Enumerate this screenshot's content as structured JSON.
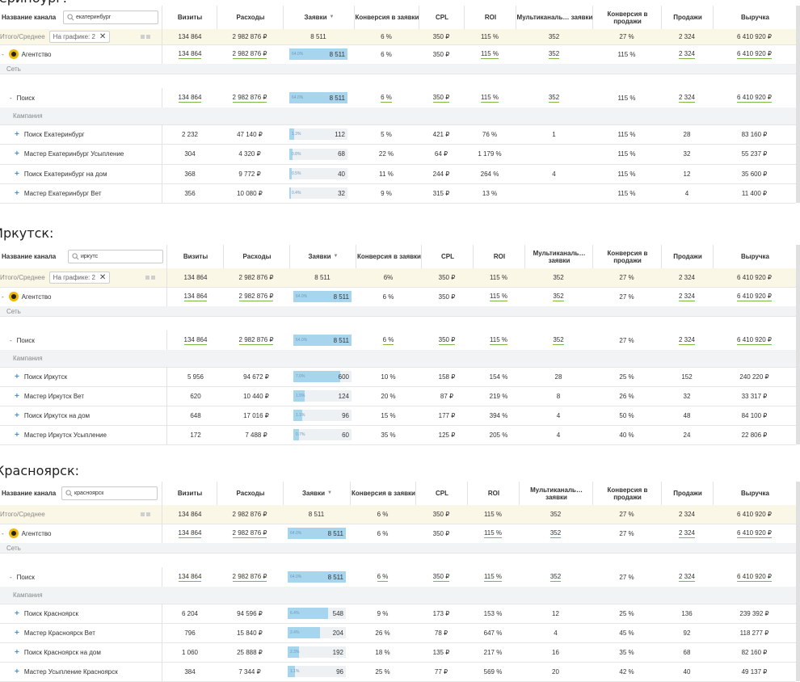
{
  "columns": [
    "Визиты",
    "Расходы",
    "Заявки",
    "Конверсия в заявки",
    "CPL",
    "ROI",
    "Мультиканаль… заявки",
    "Конверсия в продажи",
    "Продажи",
    "Выручка"
  ],
  "name_header": "Название канала",
  "sort_arrow": "▼",
  "chip_label": "На графике: 2",
  "chip_close": "✕",
  "sections": [
    {
      "heading": "Екатеринбург:",
      "search_value": "екатеринбург",
      "total": {
        "label": "Итого/Среднее",
        "values": [
          "134 864",
          "2 982 876 ₽",
          "8 511",
          "6 %",
          "350 ₽",
          "115 %",
          "352",
          "27 %",
          "2 324",
          "6 410 920 ₽"
        ]
      },
      "agency": {
        "label": "Агентство",
        "bar_pct": "64.0%",
        "bar_fraction": 1.0,
        "values": [
          "134 864",
          "2 982 876 ₽",
          "8 511",
          "6 %",
          "350 ₽",
          "115 %",
          "352",
          "115 %",
          "2 324",
          "6 410 920 ₽"
        ]
      },
      "group_network": "Сеть",
      "search_row": {
        "label": "Поиск",
        "bar_pct": "64.0%",
        "bar_fraction": 1.0,
        "values": [
          "134 864",
          "2 982 876 ₽",
          "8 511",
          "6 %",
          "350 ₽",
          "115 %",
          "352",
          "115 %",
          "2 324",
          "6 410 920 ₽"
        ]
      },
      "group_campaign": "Кампания",
      "campaigns": [
        {
          "label": "Поиск Екатеринбург",
          "bar_pct": "1.3%",
          "bar_fraction": 0.09,
          "values": [
            "2 232",
            "47 140 ₽",
            "112",
            "5 %",
            "421 ₽",
            "76 %",
            "1",
            "115 %",
            "28",
            "83 160 ₽"
          ]
        },
        {
          "label": "Мастер Екатеринбург Усыпление",
          "bar_pct": "0.8%",
          "bar_fraction": 0.06,
          "values": [
            "304",
            "4 320 ₽",
            "68",
            "22 %",
            "64 ₽",
            "1 179 %",
            "",
            "115 %",
            "32",
            "55 237 ₽"
          ]
        },
        {
          "label": "Поиск Екатеринбург на дом",
          "bar_pct": "0.5%",
          "bar_fraction": 0.04,
          "values": [
            "368",
            "9 772 ₽",
            "40",
            "11 %",
            "244 ₽",
            "264 %",
            "4",
            "115 %",
            "12",
            "35 600 ₽"
          ]
        },
        {
          "label": "Мастер Екатеринбург Вет",
          "bar_pct": "0.4%",
          "bar_fraction": 0.03,
          "values": [
            "356",
            "10 080 ₽",
            "32",
            "9 %",
            "315 ₽",
            "13 %",
            "",
            "115 %",
            "4",
            "11 400 ₽"
          ]
        }
      ]
    },
    {
      "heading": "Иркутск:",
      "search_value": "иркутс",
      "total": {
        "label": "Итого/Среднее",
        "values": [
          "134 864",
          "2 982 876 ₽",
          "8 511",
          "6%",
          "350 ₽",
          "115 %",
          "352",
          "27 %",
          "2 324",
          "6 410 920 ₽"
        ]
      },
      "agency": {
        "label": "Агентство",
        "bar_pct": "64.0%",
        "bar_fraction": 1.0,
        "values": [
          "134 864",
          "2 982 876 ₽",
          "8 511",
          "6 %",
          "350 ₽",
          "115 %",
          "352",
          "27 %",
          "2 324",
          "6 410 920 ₽"
        ]
      },
      "group_network": "Сеть",
      "search_row": {
        "label": "Поиск",
        "bar_pct": "64.0%",
        "bar_fraction": 1.0,
        "values": [
          "134 864",
          "2 982 876 ₽",
          "8 511",
          "6 %",
          "350 ₽",
          "115 %",
          "352",
          "27 %",
          "2 324",
          "6 410 920 ₽"
        ]
      },
      "group_campaign": "Кампания",
      "campaigns": [
        {
          "label": "Поиск Иркутск",
          "bar_pct": "7.0%",
          "bar_fraction": 0.8,
          "values": [
            "5 956",
            "94 672 ₽",
            "600",
            "10 %",
            "158 ₽",
            "154 %",
            "28",
            "25 %",
            "152",
            "240 220 ₽"
          ]
        },
        {
          "label": "Мастер Иркутск Вет",
          "bar_pct": "1.5%",
          "bar_fraction": 0.2,
          "values": [
            "620",
            "10 440 ₽",
            "124",
            "20 %",
            "87 ₽",
            "219 %",
            "8",
            "26 %",
            "32",
            "33 317 ₽"
          ]
        },
        {
          "label": "Поиск Иркутск на дом",
          "bar_pct": "1.1%",
          "bar_fraction": 0.15,
          "values": [
            "648",
            "17 016 ₽",
            "96",
            "15 %",
            "177 ₽",
            "394 %",
            "4",
            "50 %",
            "48",
            "84 100 ₽"
          ]
        },
        {
          "label": "Мастер Иркутск Усыпление",
          "bar_pct": "0.7%",
          "bar_fraction": 0.1,
          "values": [
            "172",
            "7 488 ₽",
            "60",
            "35 %",
            "125 ₽",
            "205 %",
            "4",
            "40 %",
            "24",
            "22 806 ₽"
          ]
        }
      ]
    },
    {
      "heading": "Красноярск:",
      "search_value": "красноярск",
      "total": {
        "label": "Итого/Среднее",
        "values": [
          "134 864",
          "2 982 876 ₽",
          "8 511",
          "6 %",
          "350 ₽",
          "115 %",
          "352",
          "27 %",
          "2 324",
          "6 410 920 ₽"
        ]
      },
      "agency": {
        "label": "Агентство",
        "bar_pct": "64.0%",
        "bar_fraction": 1.0,
        "values": [
          "134 864",
          "2 982 876 ₽",
          "8 511",
          "6 %",
          "350 ₽",
          "115 %",
          "352",
          "27 %",
          "2 324",
          "6 410 920 ₽"
        ]
      },
      "group_network": "Сеть",
      "search_row": {
        "label": "Поиск",
        "bar_pct": "64.0%",
        "bar_fraction": 1.0,
        "values": [
          "134 864",
          "2 982 876 ₽",
          "8 511",
          "6 %",
          "350 ₽",
          "115 %",
          "352",
          "27 %",
          "2 324",
          "6 410 920 ₽"
        ]
      },
      "group_campaign": "Кампания",
      "campaigns": [
        {
          "label": "Поиск Красноярск",
          "bar_pct": "6.4%",
          "bar_fraction": 0.7,
          "values": [
            "6 204",
            "94 596 ₽",
            "548",
            "9 %",
            "173 ₽",
            "153 %",
            "12",
            "25 %",
            "136",
            "239 392 ₽"
          ]
        },
        {
          "label": "Мастер Красноярск Вет",
          "bar_pct": "2.4%",
          "bar_fraction": 0.55,
          "values": [
            "796",
            "15 840 ₽",
            "204",
            "26 %",
            "78 ₽",
            "647 %",
            "4",
            "45 %",
            "92",
            "118 277 ₽"
          ]
        },
        {
          "label": "Поиск Красноярск на дом",
          "bar_pct": "2.3%",
          "bar_fraction": 0.2,
          "values": [
            "1 060",
            "25 888 ₽",
            "192",
            "18 %",
            "135 ₽",
            "217 %",
            "16",
            "35 %",
            "68",
            "82 160 ₽"
          ]
        },
        {
          "label": "Мастер Усыпление Красноярск",
          "bar_pct": "1.1%",
          "bar_fraction": 0.12,
          "values": [
            "384",
            "7 344 ₽",
            "96",
            "25 %",
            "77 ₽",
            "569 %",
            "20",
            "42 %",
            "40",
            "49 137 ₽"
          ]
        }
      ]
    }
  ]
}
